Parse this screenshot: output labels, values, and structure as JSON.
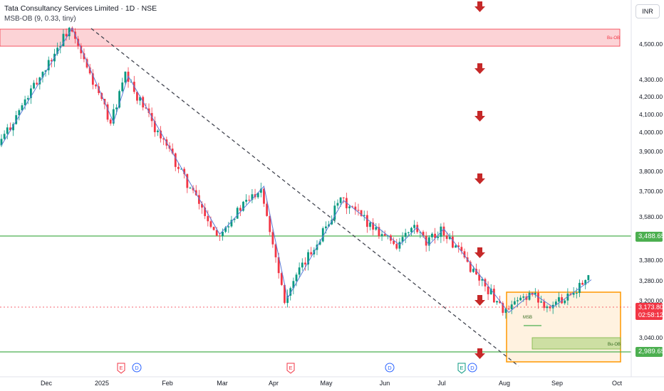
{
  "header": {
    "title": "Tata Consultancy Services Limited · 1D · NSE",
    "indicator": "MSB-OB (9, 0.33, tiny)"
  },
  "currency": "INR",
  "price_scale": {
    "labels": [
      "4,500.00",
      "4,300.00",
      "4,200.00",
      "4,100.00",
      "4,000.00",
      "3,900.00",
      "3,800.00",
      "3,700.00",
      "3,580.00",
      "3,380.00",
      "3,280.00",
      "3,200.00",
      "3,040.00"
    ],
    "current_price": "3,173.80",
    "countdown": "02:58:12",
    "level_high": "3,488.65",
    "level_low": "2,989.65"
  },
  "time_axis": {
    "labels": [
      "Dec",
      "2025",
      "Feb",
      "Mar",
      "Apr",
      "May",
      "Jun",
      "Jul",
      "Aug",
      "Sep",
      "Oct"
    ]
  },
  "zones": {
    "top_ob_label": "Bu-OB",
    "bottom_ob_label": "Bu-OB",
    "msb_label": "MSB"
  },
  "event_markers": {
    "earnings": "E",
    "dividend": "D"
  },
  "colors": {
    "up": "#089981",
    "down": "#f23645",
    "zigzag": "#5b7bd8",
    "level": "#4caf50",
    "range_box": "#ff9800",
    "ob_zone": "#f23645"
  },
  "chart_data": {
    "type": "candlestick",
    "symbol": "Tata Consultancy Services Limited",
    "interval": "1D",
    "exchange": "NSE",
    "last_price": 3173.8,
    "horizontal_levels": [
      3488.65,
      2989.65
    ],
    "zigzag_pivots": [
      {
        "date": "Nov",
        "price": 3930
      },
      {
        "date": "Dec",
        "price": 4590
      },
      {
        "date": "Jan",
        "price": 4060
      },
      {
        "date": "Jan",
        "price": 4320
      },
      {
        "date": "Mar",
        "price": 3430
      },
      {
        "date": "Mar",
        "price": 3700
      },
      {
        "date": "Apr",
        "price": 3070
      },
      {
        "date": "May",
        "price": 3620
      },
      {
        "date": "Jun",
        "price": 3370
      },
      {
        "date": "Jun",
        "price": 3470
      },
      {
        "date": "Jul",
        "price": 3370
      },
      {
        "date": "Jul",
        "price": 3460
      },
      {
        "date": "Aug",
        "price": 2990
      },
      {
        "date": "Aug",
        "price": 3100
      },
      {
        "date": "Sep",
        "price": 3020
      },
      {
        "date": "Sep",
        "price": 3173.8
      }
    ],
    "range_box": {
      "from": "Aug",
      "to": "Oct",
      "high": 3230,
      "low": 2980
    }
  }
}
